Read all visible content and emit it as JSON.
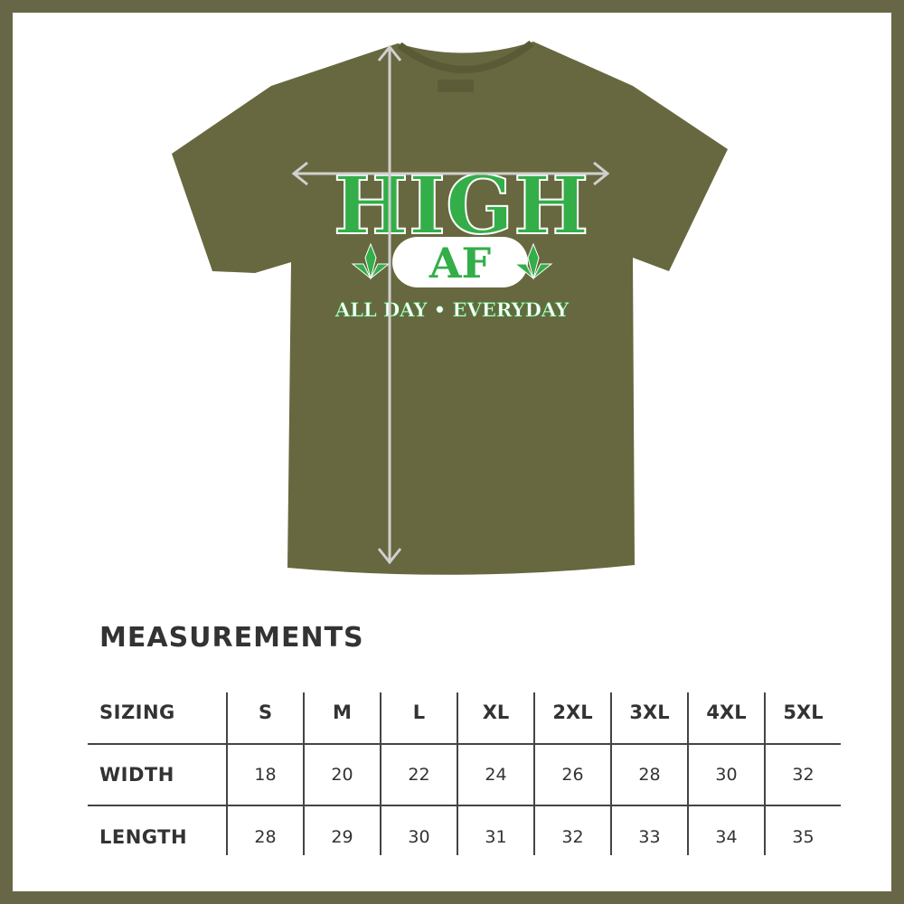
{
  "colors": {
    "frame": "#676747",
    "shirt": "#67683f",
    "print_green": "#33ae48",
    "arrow": "#d0d0d0"
  },
  "shirt_print": {
    "line1": "HIGH",
    "badge": "AF",
    "tagline": "ALL DAY • EVERYDAY",
    "icons": [
      "cannabis-leaf-icon",
      "cannabis-leaf-icon"
    ]
  },
  "title": "MEASUREMENTS",
  "table": {
    "header_label": "SIZING",
    "sizes": [
      "S",
      "M",
      "L",
      "XL",
      "2XL",
      "3XL",
      "4XL",
      "5XL"
    ],
    "rows": [
      {
        "label": "WIDTH",
        "values": [
          "18",
          "20",
          "22",
          "24",
          "26",
          "28",
          "30",
          "32"
        ]
      },
      {
        "label": "LENGTH",
        "values": [
          "28",
          "29",
          "30",
          "31",
          "32",
          "33",
          "34",
          "35"
        ]
      }
    ]
  }
}
